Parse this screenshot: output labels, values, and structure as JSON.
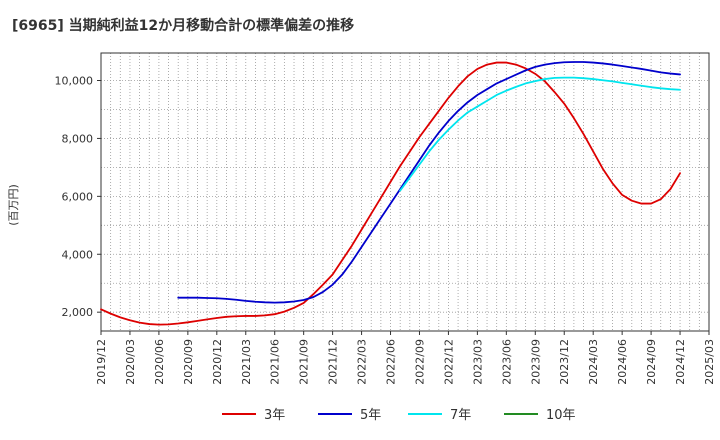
{
  "chart_data": {
    "type": "line",
    "title": "[6965]  当期純利益12か月移動合計の標準偏差の推移",
    "ylabel": "(百万円)",
    "xlabel": "",
    "x_ticks": [
      "2019/12",
      "2020/03",
      "2020/06",
      "2020/09",
      "2020/12",
      "2021/03",
      "2021/06",
      "2021/09",
      "2021/12",
      "2022/03",
      "2022/06",
      "2022/09",
      "2022/12",
      "2023/03",
      "2023/06",
      "2023/09",
      "2023/12",
      "2024/03",
      "2024/06",
      "2024/09",
      "2024/12",
      "2025/03"
    ],
    "y_ticks": [
      "2,000",
      "4,000",
      "6,000",
      "8,000",
      "10,000"
    ],
    "y_tick_values": [
      2000,
      4000,
      6000,
      8000,
      10000
    ],
    "ylim": [
      1350,
      10950
    ],
    "grid": true,
    "legend_position": "bottom",
    "series": [
      {
        "name": "3年",
        "color": "#dd0000",
        "points": [
          [
            "2019/12",
            2100
          ],
          [
            "2020/01",
            1950
          ],
          [
            "2020/02",
            1820
          ],
          [
            "2020/03",
            1720
          ],
          [
            "2020/04",
            1640
          ],
          [
            "2020/05",
            1590
          ],
          [
            "2020/06",
            1570
          ],
          [
            "2020/07",
            1580
          ],
          [
            "2020/08",
            1610
          ],
          [
            "2020/09",
            1650
          ],
          [
            "2020/10",
            1700
          ],
          [
            "2020/11",
            1750
          ],
          [
            "2020/12",
            1800
          ],
          [
            "2021/01",
            1840
          ],
          [
            "2021/02",
            1860
          ],
          [
            "2021/03",
            1870
          ],
          [
            "2021/04",
            1870
          ],
          [
            "2021/05",
            1890
          ],
          [
            "2021/06",
            1930
          ],
          [
            "2021/07",
            2020
          ],
          [
            "2021/08",
            2150
          ],
          [
            "2021/09",
            2320
          ],
          [
            "2021/10",
            2620
          ],
          [
            "2021/11",
            2950
          ],
          [
            "2021/12",
            3300
          ],
          [
            "2022/01",
            3800
          ],
          [
            "2022/02",
            4300
          ],
          [
            "2022/03",
            4850
          ],
          [
            "2022/04",
            5400
          ],
          [
            "2022/05",
            5950
          ],
          [
            "2022/06",
            6500
          ],
          [
            "2022/07",
            7050
          ],
          [
            "2022/08",
            7550
          ],
          [
            "2022/09",
            8050
          ],
          [
            "2022/10",
            8500
          ],
          [
            "2022/11",
            8950
          ],
          [
            "2022/12",
            9400
          ],
          [
            "2023/01",
            9800
          ],
          [
            "2023/02",
            10150
          ],
          [
            "2023/03",
            10400
          ],
          [
            "2023/04",
            10550
          ],
          [
            "2023/05",
            10620
          ],
          [
            "2023/06",
            10620
          ],
          [
            "2023/07",
            10550
          ],
          [
            "2023/08",
            10420
          ],
          [
            "2023/09",
            10230
          ],
          [
            "2023/10",
            9970
          ],
          [
            "2023/11",
            9600
          ],
          [
            "2023/12",
            9200
          ],
          [
            "2024/01",
            8700
          ],
          [
            "2024/02",
            8150
          ],
          [
            "2024/03",
            7550
          ],
          [
            "2024/04",
            6950
          ],
          [
            "2024/05",
            6450
          ],
          [
            "2024/06",
            6050
          ],
          [
            "2024/07",
            5850
          ],
          [
            "2024/08",
            5750
          ],
          [
            "2024/09",
            5750
          ],
          [
            "2024/10",
            5900
          ],
          [
            "2024/11",
            6250
          ],
          [
            "2024/12",
            6800
          ]
        ]
      },
      {
        "name": "5年",
        "color": "#0000cc",
        "points": [
          [
            "2020/08",
            2500
          ],
          [
            "2020/09",
            2500
          ],
          [
            "2020/10",
            2500
          ],
          [
            "2020/11",
            2490
          ],
          [
            "2020/12",
            2480
          ],
          [
            "2021/01",
            2460
          ],
          [
            "2021/02",
            2430
          ],
          [
            "2021/03",
            2390
          ],
          [
            "2021/04",
            2360
          ],
          [
            "2021/05",
            2340
          ],
          [
            "2021/06",
            2330
          ],
          [
            "2021/07",
            2340
          ],
          [
            "2021/08",
            2370
          ],
          [
            "2021/09",
            2420
          ],
          [
            "2021/10",
            2520
          ],
          [
            "2021/11",
            2700
          ],
          [
            "2021/12",
            2950
          ],
          [
            "2022/01",
            3300
          ],
          [
            "2022/02",
            3750
          ],
          [
            "2022/03",
            4250
          ],
          [
            "2022/04",
            4750
          ],
          [
            "2022/05",
            5250
          ],
          [
            "2022/06",
            5750
          ],
          [
            "2022/07",
            6250
          ],
          [
            "2022/08",
            6750
          ],
          [
            "2022/09",
            7250
          ],
          [
            "2022/10",
            7750
          ],
          [
            "2022/11",
            8200
          ],
          [
            "2022/12",
            8600
          ],
          [
            "2023/01",
            8950
          ],
          [
            "2023/02",
            9250
          ],
          [
            "2023/03",
            9500
          ],
          [
            "2023/04",
            9700
          ],
          [
            "2023/05",
            9900
          ],
          [
            "2023/06",
            10050
          ],
          [
            "2023/07",
            10200
          ],
          [
            "2023/08",
            10350
          ],
          [
            "2023/09",
            10470
          ],
          [
            "2023/10",
            10550
          ],
          [
            "2023/11",
            10600
          ],
          [
            "2023/12",
            10630
          ],
          [
            "2024/01",
            10640
          ],
          [
            "2024/02",
            10640
          ],
          [
            "2024/03",
            10620
          ],
          [
            "2024/04",
            10590
          ],
          [
            "2024/05",
            10550
          ],
          [
            "2024/06",
            10500
          ],
          [
            "2024/07",
            10450
          ],
          [
            "2024/08",
            10400
          ],
          [
            "2024/09",
            10340
          ],
          [
            "2024/10",
            10280
          ],
          [
            "2024/11",
            10240
          ],
          [
            "2024/12",
            10210
          ]
        ]
      },
      {
        "name": "7年",
        "color": "#00e5ee",
        "points": [
          [
            "2022/07",
            6200
          ],
          [
            "2022/08",
            6650
          ],
          [
            "2022/09",
            7100
          ],
          [
            "2022/10",
            7550
          ],
          [
            "2022/11",
            7950
          ],
          [
            "2022/12",
            8300
          ],
          [
            "2023/01",
            8620
          ],
          [
            "2023/02",
            8900
          ],
          [
            "2023/03",
            9100
          ],
          [
            "2023/04",
            9300
          ],
          [
            "2023/05",
            9500
          ],
          [
            "2023/06",
            9650
          ],
          [
            "2023/07",
            9780
          ],
          [
            "2023/08",
            9900
          ],
          [
            "2023/09",
            9980
          ],
          [
            "2023/10",
            10050
          ],
          [
            "2023/11",
            10090
          ],
          [
            "2023/12",
            10100
          ],
          [
            "2024/01",
            10100
          ],
          [
            "2024/02",
            10080
          ],
          [
            "2024/03",
            10050
          ],
          [
            "2024/04",
            10010
          ],
          [
            "2024/05",
            9970
          ],
          [
            "2024/06",
            9920
          ],
          [
            "2024/07",
            9870
          ],
          [
            "2024/08",
            9820
          ],
          [
            "2024/09",
            9770
          ],
          [
            "2024/10",
            9730
          ],
          [
            "2024/11",
            9700
          ],
          [
            "2024/12",
            9680
          ]
        ]
      },
      {
        "name": "10年",
        "color": "#228b22",
        "points": []
      }
    ]
  }
}
